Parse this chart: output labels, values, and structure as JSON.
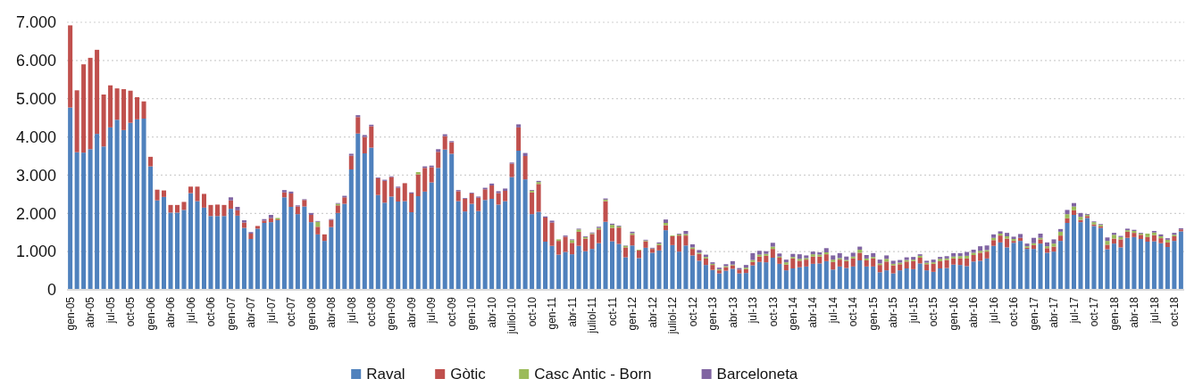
{
  "chart_data": {
    "type": "bar",
    "stacked": true,
    "categories": [
      "gen-05",
      null,
      null,
      "abr-05",
      null,
      null,
      "jul-05",
      null,
      null,
      "oct-05",
      null,
      null,
      "gen-06",
      null,
      null,
      "abr-06",
      null,
      null,
      "jul-06",
      null,
      null,
      "oct-06",
      null,
      null,
      "gen-07",
      null,
      null,
      "abr-07",
      null,
      null,
      "jul-07",
      null,
      null,
      "oct-07",
      null,
      null,
      "gen-08",
      null,
      null,
      "abr-08",
      null,
      null,
      "jul-08",
      null,
      null,
      "oct-08",
      null,
      null,
      "gen-09",
      null,
      null,
      "abr-09",
      null,
      null,
      "jul-09",
      null,
      null,
      "oct-09",
      null,
      null,
      "gen-10",
      null,
      null,
      "abr-10",
      null,
      null,
      "juliol-10",
      null,
      null,
      "oct-10",
      null,
      null,
      "gen-11",
      null,
      null,
      "abr-11",
      null,
      null,
      "juliol-11",
      null,
      null,
      "oct-11",
      null,
      null,
      "gen-12",
      null,
      null,
      "abr-12",
      null,
      null,
      "juliol-12",
      null,
      null,
      "oct-12",
      null,
      null,
      "gen-13",
      null,
      null,
      "abr-13",
      null,
      null,
      "jul-13",
      null,
      null,
      "oct-13",
      null,
      null,
      "gen-14",
      null,
      null,
      "abr-14",
      null,
      null,
      "jul-14",
      null,
      null,
      "oct-14",
      null,
      null,
      "gen-15",
      null,
      null,
      "abr-15",
      null,
      null,
      "jul-15",
      null,
      null,
      "oct-15",
      null,
      null,
      "gen-16",
      null,
      null,
      "abr-16",
      null,
      null,
      "jul-16",
      null,
      null,
      "oct-16",
      null,
      null,
      "gen-17",
      null,
      null,
      "abr-17",
      null,
      null,
      "jul-17",
      null,
      null,
      "oct-17",
      null,
      null,
      "gen-18",
      null,
      null,
      "abr-18",
      null,
      null,
      "jul-18",
      null,
      null,
      "oct-18",
      null
    ],
    "series": [
      {
        "name": "Raval",
        "color": "#4f81bd",
        "values": [
          4770,
          3600,
          3590,
          3680,
          4080,
          3750,
          4250,
          4450,
          4180,
          4370,
          4460,
          4480,
          3230,
          2340,
          2430,
          2020,
          2020,
          2090,
          2530,
          2320,
          2150,
          1930,
          1930,
          1930,
          2120,
          1940,
          1620,
          1330,
          1600,
          1750,
          1770,
          1820,
          2420,
          2170,
          1980,
          2180,
          1770,
          1450,
          1280,
          1640,
          2010,
          2250,
          3150,
          4090,
          3570,
          3720,
          2480,
          2280,
          2440,
          2310,
          2320,
          2030,
          2450,
          2570,
          2810,
          3190,
          3670,
          3560,
          2320,
          2050,
          2250,
          2060,
          2350,
          2380,
          2230,
          2320,
          2950,
          3640,
          2890,
          1980,
          2040,
          1260,
          1150,
          920,
          990,
          930,
          1150,
          1010,
          1070,
          1220,
          1780,
          1270,
          1200,
          850,
          1160,
          830,
          1100,
          970,
          1030,
          1560,
          1170,
          1000,
          1160,
          900,
          760,
          650,
          520,
          430,
          500,
          550,
          430,
          440,
          640,
          730,
          720,
          840,
          680,
          510,
          560,
          590,
          610,
          680,
          690,
          750,
          530,
          610,
          570,
          610,
          770,
          610,
          610,
          460,
          510,
          430,
          510,
          560,
          540,
          690,
          510,
          470,
          560,
          570,
          660,
          650,
          620,
          740,
          760,
          820,
          1150,
          1240,
          1110,
          1230,
          1280,
          1070,
          1070,
          1210,
          970,
          1000,
          1280,
          1750,
          1960,
          1770,
          1880,
          1670,
          1620,
          1060,
          1210,
          1110,
          1360,
          1380,
          1330,
          1260,
          1270,
          1220,
          1120,
          1280,
          1530
        ]
      },
      {
        "name": "Gòtic",
        "color": "#c0504d",
        "values": [
          2150,
          1620,
          2310,
          2390,
          2200,
          1360,
          1100,
          820,
          1070,
          840,
          580,
          450,
          250,
          280,
          170,
          200,
          200,
          210,
          170,
          380,
          360,
          290,
          300,
          290,
          220,
          140,
          140,
          140,
          70,
          60,
          110,
          20,
          130,
          350,
          200,
          170,
          190,
          200,
          170,
          190,
          200,
          170,
          360,
          430,
          430,
          560,
          440,
          570,
          510,
          360,
          470,
          490,
          570,
          620,
          400,
          420,
          350,
          300,
          260,
          330,
          270,
          350,
          280,
          350,
          300,
          270,
          350,
          610,
          610,
          570,
          730,
          630,
          610,
          360,
          400,
          300,
          370,
          330,
          390,
          360,
          540,
          350,
          430,
          260,
          280,
          200,
          170,
          100,
          140,
          130,
          230,
          420,
          260,
          170,
          180,
          170,
          130,
          80,
          90,
          90,
          100,
          100,
          90,
          140,
          170,
          230,
          160,
          150,
          260,
          170,
          180,
          190,
          180,
          180,
          200,
          180,
          180,
          210,
          200,
          160,
          210,
          190,
          230,
          210,
          160,
          180,
          210,
          150,
          160,
          210,
          190,
          210,
          160,
          170,
          200,
          170,
          210,
          180,
          150,
          180,
          230,
          50,
          80,
          30,
          100,
          110,
          120,
          130,
          140,
          120,
          120,
          60,
          50,
          40,
          40,
          120,
          130,
          210,
          160,
          110,
          110,
          120,
          160,
          130,
          120,
          120,
          50
        ]
      },
      {
        "name": "Casc Antic - Born",
        "color": "#9bbb59",
        "values": [
          0,
          0,
          0,
          0,
          0,
          0,
          0,
          0,
          0,
          0,
          0,
          0,
          0,
          0,
          0,
          0,
          0,
          0,
          0,
          0,
          0,
          0,
          0,
          0,
          0,
          0,
          0,
          0,
          0,
          0,
          0,
          40,
          0,
          0,
          0,
          0,
          0,
          130,
          0,
          0,
          40,
          0,
          0,
          0,
          0,
          0,
          0,
          0,
          0,
          0,
          0,
          0,
          60,
          0,
          0,
          0,
          0,
          0,
          0,
          0,
          0,
          0,
          0,
          0,
          0,
          0,
          0,
          0,
          0,
          40,
          50,
          0,
          0,
          40,
          0,
          70,
          60,
          40,
          20,
          40,
          40,
          80,
          30,
          40,
          40,
          20,
          20,
          10,
          40,
          60,
          20,
          30,
          40,
          40,
          30,
          40,
          30,
          30,
          30,
          20,
          0,
          40,
          50,
          50,
          50,
          60,
          30,
          60,
          40,
          50,
          40,
          60,
          50,
          50,
          60,
          40,
          30,
          50,
          80,
          50,
          40,
          40,
          70,
          40,
          40,
          40,
          40,
          50,
          40,
          40,
          60,
          40,
          50,
          60,
          70,
          60,
          50,
          40,
          60,
          50,
          60,
          50,
          0,
          40,
          50,
          40,
          50,
          80,
          100,
          110,
          100,
          80,
          30,
          60,
          40,
          100,
          100,
          60,
          40,
          50,
          30,
          90,
          70,
          50,
          70,
          40,
          0
        ]
      },
      {
        "name": "Barceloneta",
        "color": "#8064a2",
        "values": [
          0,
          0,
          0,
          0,
          0,
          0,
          0,
          0,
          0,
          0,
          0,
          0,
          0,
          0,
          0,
          0,
          0,
          0,
          0,
          0,
          0,
          0,
          0,
          0,
          80,
          90,
          60,
          40,
          0,
          40,
          80,
          0,
          60,
          50,
          30,
          20,
          50,
          20,
          0,
          20,
          20,
          40,
          50,
          50,
          50,
          40,
          20,
          30,
          20,
          30,
          0,
          30,
          0,
          40,
          40,
          70,
          50,
          30,
          30,
          20,
          20,
          30,
          40,
          50,
          50,
          60,
          30,
          80,
          80,
          20,
          30,
          30,
          50,
          0,
          30,
          20,
          20,
          20,
          20,
          30,
          30,
          30,
          20,
          10,
          40,
          0,
          20,
          20,
          30,
          90,
          0,
          20,
          80,
          80,
          70,
          60,
          40,
          40,
          50,
          90,
          40,
          70,
          180,
          100,
          70,
          100,
          80,
          70,
          80,
          120,
          70,
          70,
          60,
          110,
          110,
          130,
          90,
          100,
          80,
          90,
          100,
          100,
          90,
          80,
          70,
          70,
          70,
          40,
          50,
          70,
          50,
          60,
          90,
          80,
          100,
          80,
          120,
          120,
          90,
          60,
          90,
          60,
          100,
          70,
          140,
          110,
          100,
          110,
          70,
          110,
          90,
          100,
          20,
          20,
          20,
          90,
          50,
          30,
          40,
          30,
          20,
          0,
          40,
          50,
          40,
          50,
          30
        ]
      }
    ],
    "ylim": [
      0,
      7000
    ],
    "yticks": [
      0,
      {
        "value": 1000,
        "label": "1.000"
      },
      {
        "value": 2000,
        "label": "2.000"
      },
      {
        "value": 3000,
        "label": "3.000"
      },
      {
        "value": 4000,
        "label": "4.000"
      },
      {
        "value": 5000,
        "label": "5.000"
      },
      {
        "value": 6000,
        "label": "6.000"
      },
      {
        "value": 7000,
        "label": "7.000"
      }
    ],
    "grid": "y",
    "legend": "bottom"
  }
}
